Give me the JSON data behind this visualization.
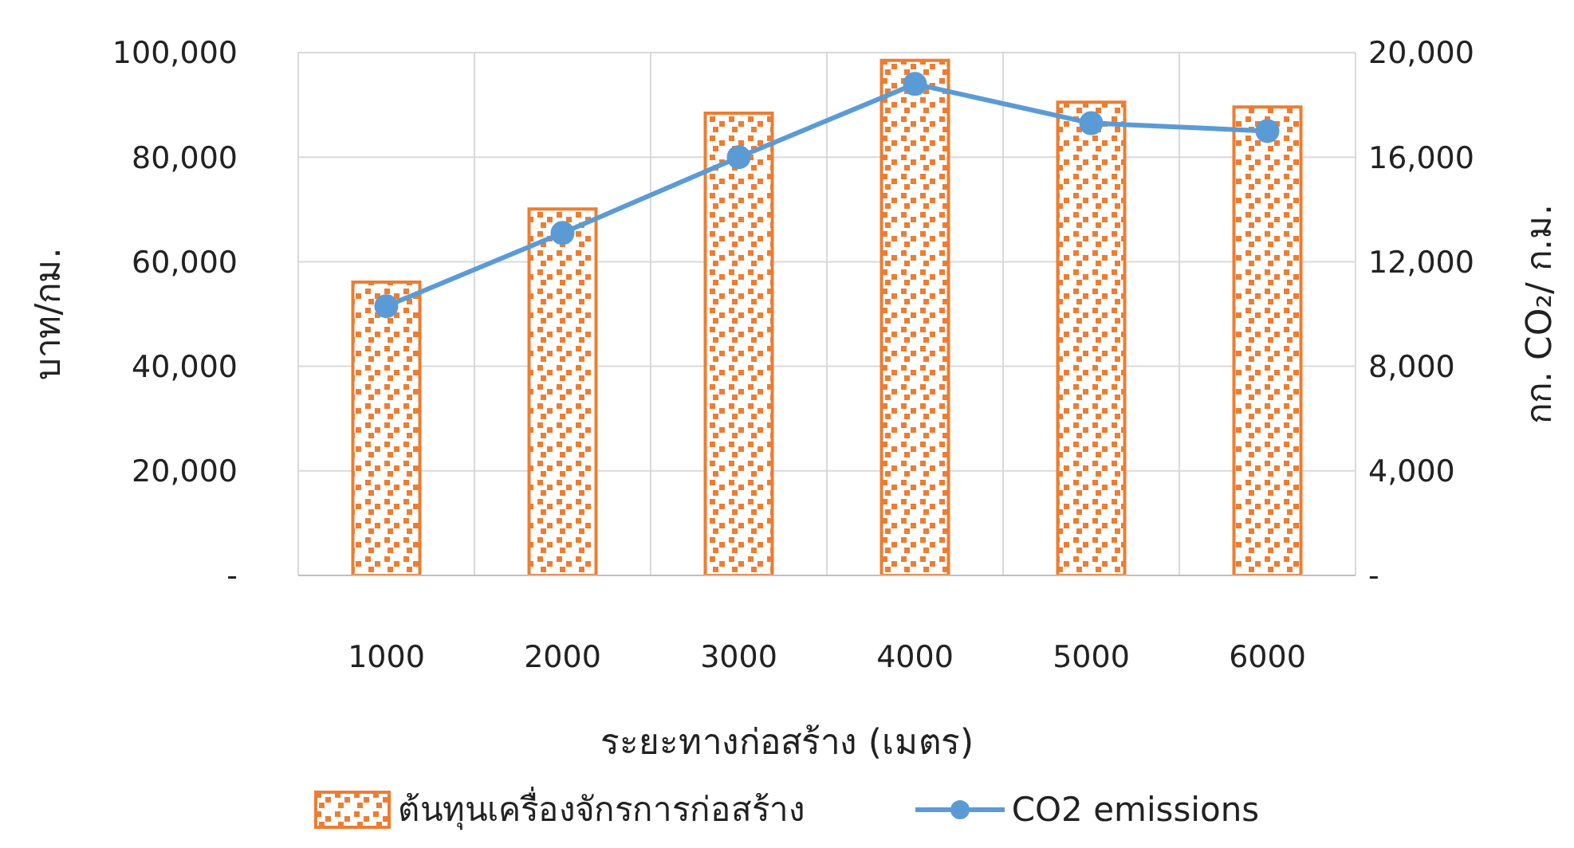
{
  "chart_data": {
    "type": "bar",
    "xlabel": "ระยะทางก่อสร้าง (เมตร)",
    "ylabel": "บาท/กม.",
    "y2label": "กก. CO₂/ ก.ม.",
    "categories": [
      "1000",
      "2000",
      "3000",
      "4000",
      "5000",
      "6000"
    ],
    "series": [
      {
        "name": "ต้นทุนเครื่องจักรการก่อสร้าง",
        "color": "#ed7d31",
        "values": [
          56100,
          70100,
          88400,
          98500,
          90500,
          89600
        ]
      },
      {
        "name": "CO2 emissions",
        "type": "line",
        "axis": "y2",
        "color": "#5b9bd5",
        "marker": "circle",
        "values": [
          10300,
          13100,
          16000,
          18800,
          17300,
          17000
        ]
      }
    ],
    "ylim": [
      0,
      100000
    ],
    "yticks": [
      {
        "value": 0,
        "label": "-"
      },
      {
        "value": 20000,
        "label": "20,000"
      },
      {
        "value": 40000,
        "label": "40,000"
      },
      {
        "value": 60000,
        "label": "60,000"
      },
      {
        "value": 80000,
        "label": "80,000"
      },
      {
        "value": 100000,
        "label": "100,000"
      }
    ],
    "y2lim": [
      0,
      20000
    ],
    "y2ticks": [
      {
        "value": 0,
        "label": "-"
      },
      {
        "value": 4000,
        "label": "4,000"
      },
      {
        "value": 8000,
        "label": "8,000"
      },
      {
        "value": 12000,
        "label": "12,000"
      },
      {
        "value": 16000,
        "label": "16,000"
      },
      {
        "value": 20000,
        "label": "20,000"
      }
    ],
    "grid": true,
    "legend": "bottom"
  }
}
